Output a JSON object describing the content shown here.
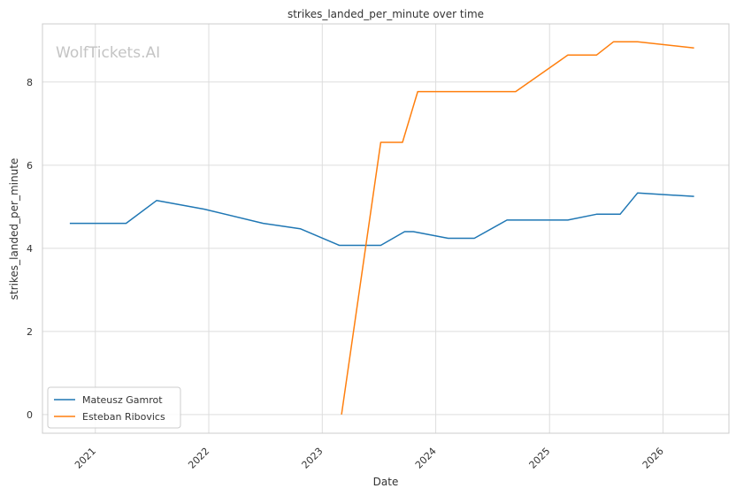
{
  "chart_data": {
    "type": "line",
    "title": "strikes_landed_per_minute over time",
    "xlabel": "Date",
    "ylabel": "strikes_landed_per_minute",
    "watermark": "WolfTickets.AI",
    "x_tick_labels": [
      "2021",
      "2022",
      "2023",
      "2024",
      "2025",
      "2026"
    ],
    "y_ticks": [
      0,
      2,
      4,
      6,
      8
    ],
    "ylim": [
      -0.45,
      9.4
    ],
    "xlim": [
      "2020-07-15",
      "2026-08-01"
    ],
    "grid": true,
    "legend_position": "lower-left",
    "series": [
      {
        "name": "Mateusz Gamrot",
        "color": "#1f77b4",
        "points": [
          {
            "x": "2020-10-11",
            "y": 4.6
          },
          {
            "x": "2021-04-10",
            "y": 4.6
          },
          {
            "x": "2021-07-17",
            "y": 5.15
          },
          {
            "x": "2021-12-18",
            "y": 4.94
          },
          {
            "x": "2022-06-25",
            "y": 4.6
          },
          {
            "x": "2022-10-22",
            "y": 4.47
          },
          {
            "x": "2023-02-25",
            "y": 4.07
          },
          {
            "x": "2023-07-08",
            "y": 4.07
          },
          {
            "x": "2023-09-23",
            "y": 4.4
          },
          {
            "x": "2023-10-21",
            "y": 4.4
          },
          {
            "x": "2024-02-10",
            "y": 4.24
          },
          {
            "x": "2024-05-04",
            "y": 4.24
          },
          {
            "x": "2024-08-17",
            "y": 4.68
          },
          {
            "x": "2025-03-01",
            "y": 4.68
          },
          {
            "x": "2025-06-01",
            "y": 4.82
          },
          {
            "x": "2025-08-16",
            "y": 4.82
          },
          {
            "x": "2025-10-11",
            "y": 5.33
          },
          {
            "x": "2026-04-11",
            "y": 5.25
          }
        ]
      },
      {
        "name": "Esteban Ribovics",
        "color": "#ff7f0e",
        "points": [
          {
            "x": "2023-03-04",
            "y": 0.0
          },
          {
            "x": "2023-07-08",
            "y": 6.55
          },
          {
            "x": "2023-09-16",
            "y": 6.55
          },
          {
            "x": "2023-11-04",
            "y": 7.77
          },
          {
            "x": "2024-09-14",
            "y": 7.77
          },
          {
            "x": "2025-03-01",
            "y": 8.65
          },
          {
            "x": "2025-06-01",
            "y": 8.65
          },
          {
            "x": "2025-07-26",
            "y": 8.97
          },
          {
            "x": "2025-10-11",
            "y": 8.97
          },
          {
            "x": "2026-04-11",
            "y": 8.82
          }
        ]
      }
    ]
  }
}
